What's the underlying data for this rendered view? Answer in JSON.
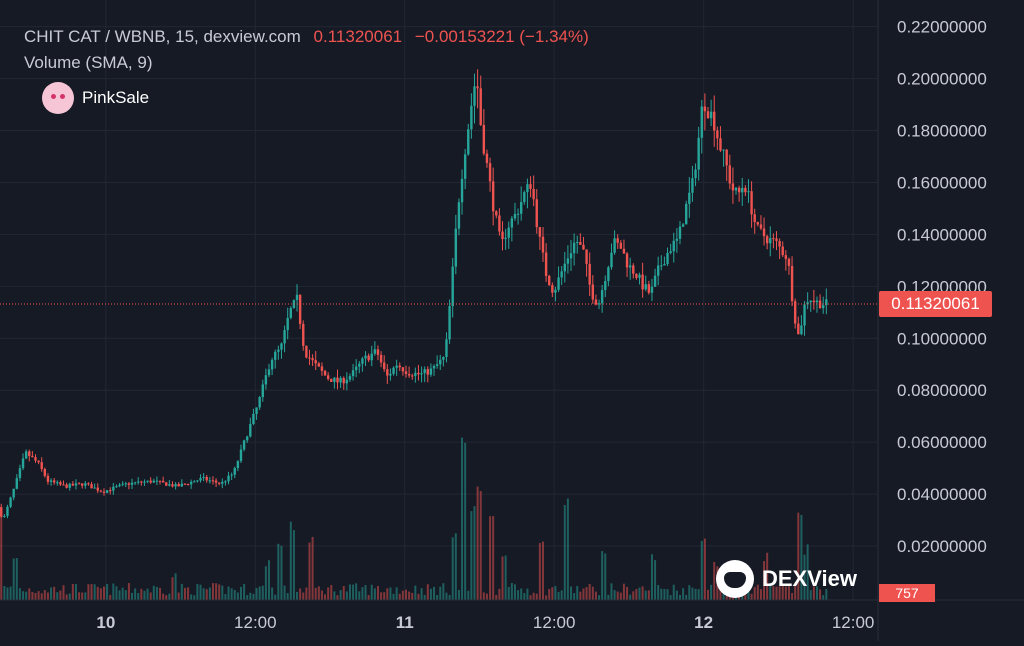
{
  "legend": {
    "symbol": "CHIT CAT / WBNB, 15, dexview.com",
    "price": "0.11320061",
    "change": "−0.00153221 (−1.34%)",
    "volume_label": "Volume (SMA, 9)"
  },
  "branding": {
    "pinksale": "PinkSale",
    "dexview": "DEXView"
  },
  "colors": {
    "up": "#26a69a",
    "down": "#ef5350",
    "background": "#161a25",
    "grid": "#232734",
    "axis_text": "#c8cbd3"
  },
  "chart_data": {
    "type": "candlestick",
    "title": "",
    "xlabel": "",
    "ylabel": "",
    "ylim": [
      0,
      0.23
    ],
    "y_ticks": [
      "0.22000000",
      "0.20000000",
      "0.18000000",
      "0.16000000",
      "0.14000000",
      "0.12000000",
      "0.10000000",
      "0.08000000",
      "0.06000000",
      "0.04000000",
      "0.02000000"
    ],
    "y_tick_values": [
      0.22,
      0.2,
      0.18,
      0.16,
      0.14,
      0.12,
      0.1,
      0.08,
      0.06,
      0.04,
      0.02
    ],
    "x_ticks": [
      "10",
      "12:00",
      "11",
      "12:00",
      "12",
      "12:00"
    ],
    "x_tick_hours": [
      24,
      36,
      48,
      60,
      72,
      84
    ],
    "x_range_hours": [
      15.5,
      86
    ],
    "bold_x_ticks": [
      "10",
      "11",
      "12"
    ],
    "current_price": 0.11320061,
    "current_price_label": "0.11320061",
    "current_volume_label": "757",
    "grid": true,
    "volume_sma": 9,
    "price_path": [
      [
        15.6,
        0.035
      ],
      [
        16.0,
        0.03
      ],
      [
        16.8,
        0.041
      ],
      [
        17.8,
        0.056
      ],
      [
        18.8,
        0.052
      ],
      [
        19.6,
        0.045
      ],
      [
        21.0,
        0.043
      ],
      [
        22.5,
        0.044
      ],
      [
        24.0,
        0.041
      ],
      [
        26.0,
        0.044
      ],
      [
        28.0,
        0.045
      ],
      [
        30.0,
        0.043
      ],
      [
        32.0,
        0.046
      ],
      [
        33.5,
        0.044
      ],
      [
        34.5,
        0.048
      ],
      [
        35.5,
        0.062
      ],
      [
        36.5,
        0.075
      ],
      [
        37.5,
        0.092
      ],
      [
        38.3,
        0.096
      ],
      [
        39.0,
        0.11
      ],
      [
        39.6,
        0.115
      ],
      [
        40.2,
        0.095
      ],
      [
        41.0,
        0.09
      ],
      [
        42.0,
        0.085
      ],
      [
        43.0,
        0.083
      ],
      [
        44.0,
        0.086
      ],
      [
        45.0,
        0.092
      ],
      [
        46.0,
        0.095
      ],
      [
        46.8,
        0.085
      ],
      [
        47.6,
        0.09
      ],
      [
        48.5,
        0.087
      ],
      [
        49.5,
        0.086
      ],
      [
        50.5,
        0.088
      ],
      [
        51.5,
        0.093
      ],
      [
        52.0,
        0.12
      ],
      [
        52.5,
        0.15
      ],
      [
        53.0,
        0.17
      ],
      [
        53.6,
        0.19
      ],
      [
        54.0,
        0.202
      ],
      [
        54.4,
        0.18
      ],
      [
        54.9,
        0.165
      ],
      [
        55.4,
        0.15
      ],
      [
        56.0,
        0.135
      ],
      [
        56.5,
        0.143
      ],
      [
        57.2,
        0.148
      ],
      [
        57.8,
        0.155
      ],
      [
        58.4,
        0.16
      ],
      [
        59.0,
        0.14
      ],
      [
        59.6,
        0.125
      ],
      [
        60.2,
        0.118
      ],
      [
        60.8,
        0.125
      ],
      [
        61.4,
        0.132
      ],
      [
        62.0,
        0.138
      ],
      [
        62.6,
        0.133
      ],
      [
        63.2,
        0.118
      ],
      [
        63.8,
        0.113
      ],
      [
        64.4,
        0.125
      ],
      [
        65.0,
        0.137
      ],
      [
        65.6,
        0.135
      ],
      [
        66.2,
        0.128
      ],
      [
        66.8,
        0.125
      ],
      [
        67.4,
        0.12
      ],
      [
        68.0,
        0.117
      ],
      [
        68.5,
        0.125
      ],
      [
        69.0,
        0.13
      ],
      [
        69.6,
        0.135
      ],
      [
        70.2,
        0.138
      ],
      [
        70.8,
        0.15
      ],
      [
        71.4,
        0.16
      ],
      [
        71.8,
        0.175
      ],
      [
        72.2,
        0.192
      ],
      [
        72.6,
        0.188
      ],
      [
        73.0,
        0.185
      ],
      [
        73.5,
        0.175
      ],
      [
        74.0,
        0.168
      ],
      [
        74.5,
        0.158
      ],
      [
        75.0,
        0.155
      ],
      [
        75.5,
        0.16
      ],
      [
        76.0,
        0.152
      ],
      [
        76.5,
        0.142
      ],
      [
        77.0,
        0.14
      ],
      [
        77.5,
        0.138
      ],
      [
        78.0,
        0.137
      ],
      [
        78.5,
        0.134
      ],
      [
        79.0,
        0.131
      ],
      [
        79.5,
        0.11
      ],
      [
        79.9,
        0.1
      ],
      [
        80.3,
        0.112
      ],
      [
        80.7,
        0.116
      ],
      [
        81.2,
        0.114
      ],
      [
        82.0,
        0.1132
      ]
    ],
    "volume_spikes": [
      [
        15.6,
        0.55
      ],
      [
        16.8,
        0.2
      ],
      [
        29.5,
        0.08
      ],
      [
        37.0,
        0.18
      ],
      [
        38.0,
        0.28
      ],
      [
        39.0,
        0.4
      ],
      [
        40.5,
        0.3
      ],
      [
        52.0,
        0.35
      ],
      [
        52.8,
        0.95
      ],
      [
        53.5,
        0.5
      ],
      [
        54.0,
        0.65
      ],
      [
        55.0,
        0.45
      ],
      [
        56.0,
        0.25
      ],
      [
        59.0,
        0.28
      ],
      [
        61.0,
        0.55
      ],
      [
        64.0,
        0.22
      ],
      [
        68.0,
        0.2
      ],
      [
        72.0,
        0.35
      ],
      [
        73.0,
        0.18
      ],
      [
        77.0,
        0.2
      ],
      [
        79.7,
        0.5
      ],
      [
        80.2,
        0.25
      ]
    ]
  }
}
